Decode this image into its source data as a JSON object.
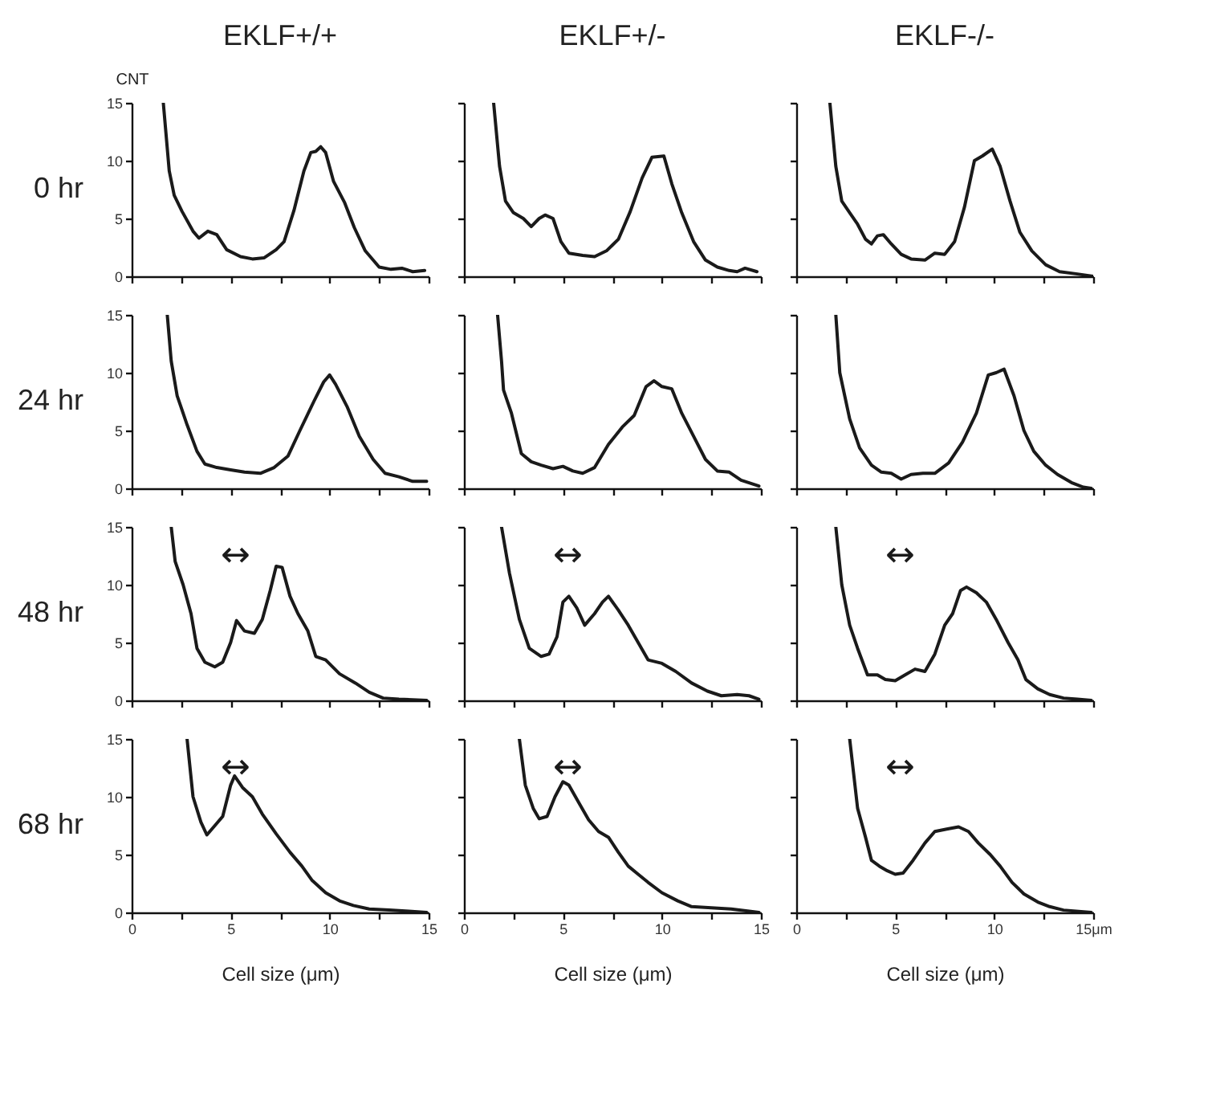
{
  "chart_data": [
    {
      "type": "line",
      "title": "EKLF+/+",
      "ylabel": "CNT",
      "annotations": [
        "0 hr"
      ],
      "xlim": [
        0,
        15
      ],
      "ylim": [
        0,
        15
      ],
      "xticks": [
        0,
        {
          "value": 2.5,
          "label": null
        },
        5,
        {
          "value": 7.5,
          "label": null
        },
        10,
        {
          "value": 12.5,
          "label": null
        },
        15
      ],
      "yticks": [
        0,
        5,
        10,
        15
      ],
      "tick_labels": "y",
      "series": [
        {
          "color": "#1a1a1a",
          "x": [
            1.6,
            1.9,
            2.15,
            2.55,
            3.1,
            3.4,
            3.85,
            4.3,
            4.8,
            5.5,
            6.1,
            6.7,
            7.3,
            7.7,
            8.2,
            8.7,
            9.05,
            9.3,
            9.55,
            9.8,
            10.2,
            10.75,
            11.25,
            11.8,
            12.5,
            13.1,
            13.65,
            14.2,
            14.8
          ],
          "values": [
            15,
            9.1,
            7.0,
            5.6,
            3.9,
            3.3,
            3.9,
            3.6,
            2.3,
            1.7,
            1.5,
            1.6,
            2.3,
            3.0,
            5.7,
            9.1,
            10.7,
            10.8,
            11.2,
            10.7,
            8.2,
            6.4,
            4.2,
            2.2,
            0.8,
            0.6,
            0.7,
            0.4,
            0.5
          ]
        }
      ]
    },
    {
      "type": "line",
      "title": "EKLF+/-",
      "xlim": [
        0,
        15
      ],
      "ylim": [
        0,
        15
      ],
      "xticks": [
        0,
        {
          "value": 2.5,
          "label": null
        },
        5,
        {
          "value": 7.5,
          "label": null
        },
        10,
        {
          "value": 12.5,
          "label": null
        },
        15
      ],
      "yticks": [
        0,
        5,
        10,
        15
      ],
      "tick_labels": false,
      "series": [
        {
          "color": "#1a1a1a",
          "x": [
            1.5,
            1.8,
            2.1,
            2.5,
            3.0,
            3.4,
            3.8,
            4.1,
            4.5,
            4.9,
            5.3,
            6.0,
            6.6,
            7.2,
            7.8,
            8.4,
            9.0,
            9.5,
            10.1,
            10.5,
            11.0,
            11.6,
            12.2,
            12.8,
            13.4,
            13.8,
            14.2,
            14.8
          ],
          "values": [
            15,
            9.5,
            6.5,
            5.5,
            5.0,
            4.3,
            5.0,
            5.3,
            5.0,
            3.0,
            2.0,
            1.8,
            1.7,
            2.2,
            3.2,
            5.6,
            8.5,
            10.3,
            10.4,
            8.0,
            5.5,
            3.0,
            1.4,
            0.8,
            0.5,
            0.4,
            0.7,
            0.4
          ]
        }
      ]
    },
    {
      "type": "line",
      "title": "EKLF-/-",
      "xlim": [
        0,
        15
      ],
      "ylim": [
        0,
        15
      ],
      "xticks": [
        0,
        {
          "value": 2.5,
          "label": null
        },
        5,
        {
          "value": 7.5,
          "label": null
        },
        10,
        {
          "value": 12.5,
          "label": null
        },
        15
      ],
      "yticks": [
        0,
        5,
        10,
        15
      ],
      "tick_labels": false,
      "series": [
        {
          "color": "#1a1a1a",
          "x": [
            1.7,
            2.0,
            2.3,
            2.7,
            3.1,
            3.5,
            3.8,
            4.1,
            4.4,
            4.8,
            5.3,
            5.8,
            6.5,
            7.0,
            7.5,
            8.0,
            8.5,
            9.0,
            9.4,
            9.9,
            10.3,
            10.8,
            11.3,
            11.9,
            12.6,
            13.3,
            14.2,
            15
          ],
          "values": [
            15,
            9.5,
            6.5,
            5.5,
            4.5,
            3.2,
            2.8,
            3.5,
            3.6,
            2.8,
            1.9,
            1.5,
            1.4,
            2.0,
            1.9,
            3.0,
            6.0,
            10.0,
            10.4,
            11.0,
            9.5,
            6.5,
            3.8,
            2.2,
            1.0,
            0.4,
            0.2,
            0.0
          ]
        }
      ]
    },
    {
      "type": "line",
      "annotations": [
        "24 hr"
      ],
      "xlim": [
        0,
        15
      ],
      "ylim": [
        0,
        15
      ],
      "xticks": [
        0,
        {
          "value": 2.5,
          "label": null
        },
        5,
        {
          "value": 7.5,
          "label": null
        },
        10,
        {
          "value": 12.5,
          "label": null
        },
        15
      ],
      "yticks": [
        0,
        5,
        10,
        15
      ],
      "tick_labels": "y",
      "series": [
        {
          "color": "#1a1a1a",
          "x": [
            1.8,
            2.0,
            2.3,
            2.8,
            3.3,
            3.7,
            4.3,
            5.0,
            5.7,
            6.5,
            7.2,
            7.9,
            8.5,
            9.2,
            9.7,
            10.0,
            10.3,
            10.9,
            11.5,
            12.2,
            12.8,
            13.5,
            14.2,
            14.9
          ],
          "values": [
            15,
            11,
            8,
            5.5,
            3.2,
            2.1,
            1.8,
            1.6,
            1.4,
            1.3,
            1.8,
            2.8,
            5.0,
            7.5,
            9.2,
            9.8,
            9.0,
            7.0,
            4.5,
            2.5,
            1.3,
            1.0,
            0.6,
            0.6
          ]
        }
      ]
    },
    {
      "type": "line",
      "xlim": [
        0,
        15
      ],
      "ylim": [
        0,
        15
      ],
      "xticks": [
        0,
        {
          "value": 2.5,
          "label": null
        },
        5,
        {
          "value": 7.5,
          "label": null
        },
        10,
        {
          "value": 12.5,
          "label": null
        },
        15
      ],
      "yticks": [
        0,
        5,
        10,
        15
      ],
      "tick_labels": false,
      "series": [
        {
          "color": "#1a1a1a",
          "x": [
            1.7,
            1.9,
            2.0,
            2.4,
            2.9,
            3.4,
            3.9,
            4.5,
            5.0,
            5.5,
            6.0,
            6.6,
            7.3,
            8.0,
            8.6,
            9.2,
            9.6,
            10.0,
            10.5,
            11.0,
            11.6,
            12.2,
            12.8,
            13.4,
            14.0,
            14.9
          ],
          "values": [
            15,
            11,
            8.5,
            6.5,
            3.0,
            2.3,
            2.0,
            1.7,
            1.9,
            1.5,
            1.3,
            1.8,
            3.8,
            5.3,
            6.3,
            8.8,
            9.3,
            8.8,
            8.6,
            6.5,
            4.5,
            2.5,
            1.5,
            1.4,
            0.7,
            0.2
          ]
        }
      ]
    },
    {
      "type": "line",
      "xlim": [
        0,
        15
      ],
      "ylim": [
        0,
        15
      ],
      "xticks": [
        0,
        {
          "value": 2.5,
          "label": null
        },
        5,
        {
          "value": 7.5,
          "label": null
        },
        10,
        {
          "value": 12.5,
          "label": null
        },
        15
      ],
      "yticks": [
        0,
        5,
        10,
        15
      ],
      "tick_labels": false,
      "series": [
        {
          "color": "#1a1a1a",
          "x": [
            2.0,
            2.2,
            2.7,
            3.2,
            3.8,
            4.3,
            4.8,
            5.3,
            5.8,
            6.4,
            7.0,
            7.7,
            8.4,
            9.1,
            9.7,
            10.1,
            10.5,
            11.0,
            11.5,
            12.0,
            12.6,
            13.2,
            13.9,
            14.5,
            14.9
          ],
          "values": [
            15,
            10,
            6.0,
            3.5,
            2.0,
            1.4,
            1.3,
            0.8,
            1.2,
            1.3,
            1.3,
            2.2,
            4.0,
            6.5,
            9.8,
            10.0,
            10.3,
            8.0,
            5.0,
            3.2,
            2.0,
            1.2,
            0.5,
            0.1,
            0.0
          ]
        }
      ]
    },
    {
      "type": "line",
      "annotations": [
        "48 hr",
        "↔"
      ],
      "xlim": [
        0,
        15
      ],
      "ylim": [
        0,
        15
      ],
      "xticks": [
        0,
        {
          "value": 2.5,
          "label": null
        },
        5,
        {
          "value": 7.5,
          "label": null
        },
        10,
        {
          "value": 12.5,
          "label": null
        },
        15
      ],
      "yticks": [
        0,
        5,
        10,
        15
      ],
      "tick_labels": "y",
      "series": [
        {
          "color": "#1a1a1a",
          "x": [
            2.0,
            2.2,
            2.6,
            3.0,
            3.3,
            3.7,
            4.2,
            4.6,
            5.0,
            5.3,
            5.7,
            6.2,
            6.6,
            7.0,
            7.3,
            7.6,
            8.0,
            8.4,
            8.9,
            9.3,
            9.8,
            10.5,
            11.3,
            12.0,
            12.7,
            13.5,
            14.9
          ],
          "values": [
            15,
            12,
            10,
            7.5,
            4.5,
            3.3,
            2.9,
            3.3,
            5.0,
            6.9,
            6.0,
            5.8,
            7.0,
            9.5,
            11.6,
            11.5,
            9.0,
            7.5,
            6.0,
            3.8,
            3.5,
            2.3,
            1.5,
            0.7,
            0.2,
            0.1,
            0.0
          ]
        }
      ]
    },
    {
      "type": "line",
      "annotations": [
        "↔"
      ],
      "xlim": [
        0,
        15
      ],
      "ylim": [
        0,
        15
      ],
      "xticks": [
        0,
        {
          "value": 2.5,
          "label": null
        },
        5,
        {
          "value": 7.5,
          "label": null
        },
        10,
        {
          "value": 12.5,
          "label": null
        },
        15
      ],
      "yticks": [
        0,
        5,
        10,
        15
      ],
      "tick_labels": false,
      "series": [
        {
          "color": "#1a1a1a",
          "x": [
            1.9,
            2.3,
            2.8,
            3.3,
            3.9,
            4.3,
            4.7,
            5.0,
            5.3,
            5.7,
            6.1,
            6.6,
            7.0,
            7.3,
            7.8,
            8.3,
            8.8,
            9.3,
            10.0,
            10.7,
            11.5,
            12.3,
            13.0,
            13.8,
            14.4,
            14.9
          ],
          "values": [
            15,
            11,
            7.0,
            4.5,
            3.8,
            4.0,
            5.5,
            8.5,
            9.0,
            8.0,
            6.5,
            7.5,
            8.5,
            9.0,
            7.8,
            6.5,
            5.0,
            3.5,
            3.2,
            2.5,
            1.5,
            0.8,
            0.4,
            0.5,
            0.4,
            0.1
          ]
        }
      ]
    },
    {
      "type": "line",
      "annotations": [
        "↔"
      ],
      "xlim": [
        0,
        15
      ],
      "ylim": [
        0,
        15
      ],
      "xticks": [
        0,
        {
          "value": 2.5,
          "label": null
        },
        5,
        {
          "value": 7.5,
          "label": null
        },
        10,
        {
          "value": 12.5,
          "label": null
        },
        15
      ],
      "yticks": [
        0,
        5,
        10,
        15
      ],
      "tick_labels": false,
      "series": [
        {
          "color": "#1a1a1a",
          "x": [
            2.0,
            2.3,
            2.7,
            3.1,
            3.6,
            4.1,
            4.5,
            5.0,
            5.5,
            6.0,
            6.5,
            7.0,
            7.5,
            7.9,
            8.3,
            8.6,
            9.1,
            9.6,
            10.1,
            10.7,
            11.2,
            11.6,
            12.2,
            12.8,
            13.5,
            14.2,
            14.9
          ],
          "values": [
            15,
            10,
            6.5,
            4.5,
            2.2,
            2.2,
            1.8,
            1.7,
            2.2,
            2.7,
            2.5,
            4.0,
            6.5,
            7.5,
            9.5,
            9.8,
            9.3,
            8.5,
            7.0,
            5.0,
            3.5,
            1.8,
            1.0,
            0.5,
            0.2,
            0.1,
            0.0
          ]
        }
      ]
    },
    {
      "type": "line",
      "xlabel": "Cell size (μm)",
      "annotations": [
        "68 hr",
        "↔"
      ],
      "xlim": [
        0,
        15
      ],
      "ylim": [
        0,
        15
      ],
      "xticks": [
        0,
        {
          "value": 2.5,
          "label": null
        },
        5,
        {
          "value": 7.5,
          "label": null
        },
        10,
        {
          "value": 12.5,
          "label": null
        },
        15
      ],
      "yticks": [
        0,
        5,
        10,
        15
      ],
      "series": [
        {
          "color": "#1a1a1a",
          "x": [
            2.8,
            3.1,
            3.5,
            3.8,
            4.2,
            4.6,
            5.0,
            5.2,
            5.6,
            6.1,
            6.6,
            7.3,
            8.0,
            8.6,
            9.1,
            9.8,
            10.5,
            11.2,
            12.0,
            13.0,
            14.0,
            14.9
          ],
          "values": [
            15,
            10,
            7.8,
            6.7,
            7.5,
            8.3,
            11.0,
            11.8,
            10.8,
            10.0,
            8.5,
            6.8,
            5.2,
            4.0,
            2.8,
            1.7,
            1.0,
            0.6,
            0.3,
            0.2,
            0.1,
            0.0
          ]
        }
      ]
    },
    {
      "type": "line",
      "xlabel": "Cell size (μm)",
      "annotations": [
        "↔"
      ],
      "xlim": [
        0,
        15
      ],
      "ylim": [
        0,
        15
      ],
      "xticks": [
        0,
        {
          "value": 2.5,
          "label": null
        },
        5,
        {
          "value": 7.5,
          "label": null
        },
        10,
        {
          "value": 12.5,
          "label": null
        },
        15
      ],
      "yticks": [
        0,
        5,
        10,
        15
      ],
      "tick_labels": "x",
      "series": [
        {
          "color": "#1a1a1a",
          "x": [
            2.8,
            3.1,
            3.5,
            3.8,
            4.2,
            4.6,
            5.0,
            5.3,
            5.8,
            6.3,
            6.8,
            7.3,
            7.8,
            8.3,
            8.8,
            9.3,
            10.0,
            10.8,
            11.5,
            12.5,
            13.5,
            14.9
          ],
          "values": [
            15,
            11,
            9.0,
            8.1,
            8.3,
            10.0,
            11.3,
            11.0,
            9.5,
            8.0,
            7.0,
            6.5,
            5.2,
            4.0,
            3.3,
            2.6,
            1.7,
            1.0,
            0.5,
            0.4,
            0.3,
            0.0
          ]
        }
      ]
    },
    {
      "type": "line",
      "xlabel": "Cell size (μm)",
      "annotations": [
        "↔"
      ],
      "xlim": [
        0,
        15
      ],
      "ylim": [
        0,
        15
      ],
      "xticks": [
        0,
        {
          "value": 2.5,
          "label": null
        },
        5,
        {
          "value": 7.5,
          "label": null
        },
        10,
        {
          "value": 12.5,
          "label": null
        },
        {
          "value": 15,
          "label": "15μm"
        }
      ],
      "yticks": [
        0,
        5,
        10,
        15
      ],
      "tick_labels": "x",
      "series": [
        {
          "color": "#1a1a1a",
          "x": [
            2.7,
            2.9,
            3.1,
            3.5,
            3.8,
            4.2,
            4.6,
            5.0,
            5.4,
            5.9,
            6.5,
            7.0,
            7.6,
            8.2,
            8.7,
            9.2,
            9.8,
            10.3,
            10.9,
            11.5,
            12.2,
            12.8,
            13.5,
            14.9
          ],
          "values": [
            15,
            12,
            9.0,
            6.5,
            4.5,
            4.0,
            3.6,
            3.3,
            3.4,
            4.5,
            6.0,
            7.0,
            7.2,
            7.4,
            7.0,
            6.0,
            5.0,
            4.0,
            2.6,
            1.6,
            0.9,
            0.5,
            0.2,
            0.0
          ]
        }
      ]
    }
  ]
}
